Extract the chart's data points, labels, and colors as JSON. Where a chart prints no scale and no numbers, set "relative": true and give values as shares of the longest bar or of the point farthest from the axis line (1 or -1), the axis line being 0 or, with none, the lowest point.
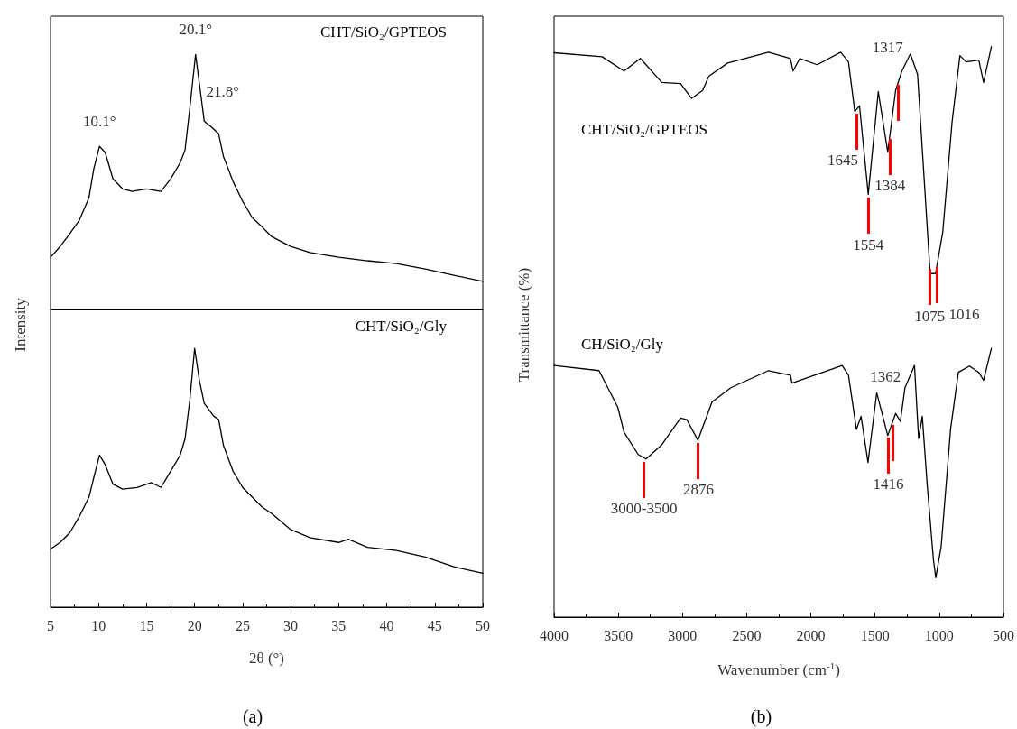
{
  "chart_data": [
    {
      "type": "line",
      "relative": true,
      "xlim": [
        5,
        50
      ],
      "tick_labels": false,
      "ylabel": "Intensity",
      "x": [
        5,
        6,
        7,
        8,
        9,
        9.5,
        10.1,
        10.7,
        11.5,
        12.5,
        13.5,
        15,
        16.5,
        17.5,
        18.5,
        19,
        19.5,
        20.1,
        20.6,
        21,
        21.8,
        22.5,
        23,
        24,
        25,
        26,
        27,
        28,
        30,
        32,
        35,
        38,
        41,
        44,
        47,
        50
      ],
      "series": [
        {
          "name": "CHT/SiO₂/GPTEOS",
          "color": "#000000",
          "values": [
            0.205,
            0.247,
            0.297,
            0.35,
            0.438,
            0.551,
            0.64,
            0.615,
            0.512,
            0.473,
            0.463,
            0.473,
            0.463,
            0.512,
            0.576,
            0.625,
            0.79,
            1,
            0.855,
            0.739,
            0.714,
            0.689,
            0.6,
            0.502,
            0.424,
            0.36,
            0.325,
            0.286,
            0.247,
            0.223,
            0.205,
            0.191,
            0.18,
            0.159,
            0.134,
            0.11
          ]
        }
      ],
      "annotations": [
        {
          "text": "10.1°",
          "x": 10.1,
          "y": 0.64
        },
        {
          "text": "20.1°",
          "x": 20.1,
          "y": 1
        },
        {
          "text": "21.8°",
          "x": 21.8,
          "y": 0.714
        }
      ]
    },
    {
      "type": "line",
      "relative": true,
      "xlim": [
        5,
        50
      ],
      "xticks": [
        5,
        10,
        15,
        20,
        25,
        30,
        35,
        40,
        45,
        50
      ],
      "tick_labels": "x",
      "xlabel": "2θ (°)",
      "x": [
        5,
        6,
        7,
        8,
        9,
        9.5,
        10.1,
        10.7,
        11.5,
        12.5,
        14,
        15.5,
        16.5,
        17.5,
        18.5,
        19,
        19.5,
        20,
        20.5,
        21,
        22,
        22.5,
        23,
        24,
        25,
        26,
        27,
        28,
        30,
        32,
        35,
        36,
        38,
        41,
        44,
        47,
        50
      ],
      "series": [
        {
          "name": "CHT/SiO₂/Gly",
          "color": "#000000",
          "values": [
            0.225,
            0.25,
            0.2875,
            0.35,
            0.425,
            0.5,
            0.5875,
            0.55,
            0.475,
            0.456,
            0.4625,
            0.481,
            0.4625,
            0.525,
            0.5875,
            0.65,
            0.8,
            1,
            0.875,
            0.7875,
            0.7375,
            0.725,
            0.625,
            0.525,
            0.4625,
            0.425,
            0.3875,
            0.3625,
            0.3,
            0.269,
            0.25,
            0.2625,
            0.231,
            0.219,
            0.194,
            0.156,
            0.131
          ]
        }
      ],
      "annotations": [
        "(a)"
      ]
    },
    {
      "type": "line",
      "relative": true,
      "xlim": [
        4000,
        500
      ],
      "xticks": [
        4000,
        3500,
        3000,
        2500,
        2000,
        1500,
        1000,
        500
      ],
      "xlabel": "Wavenumber (cm$^{-1}$)",
      "ylabel": "Transmittance (%)",
      "series": [
        {
          "name": "CHT/SiO₂/GPTEOS",
          "color": "#000000",
          "x": [
            4000,
            3626,
            3455,
            3328,
            3161,
            3015,
            2929,
            2843,
            2795,
            2648,
            2330,
            2159,
            2139,
            2086,
            1951,
            1768,
            1707,
            1658,
            1621,
            1553,
            1475,
            1401,
            1340,
            1291,
            1225,
            1169,
            1071,
            1029,
            973,
            900,
            839,
            790,
            692,
            655,
            594
          ],
          "values": [
            0.989,
            0.982,
            0.957,
            0.979,
            0.937,
            0.935,
            0.909,
            0.923,
            0.948,
            0.971,
            0.99,
            0.979,
            0.957,
            0.979,
            0.968,
            0.99,
            0.973,
            0.886,
            0.896,
            0.741,
            0.921,
            0.815,
            0.923,
            0.957,
            0.987,
            0.951,
            0.602,
            0.602,
            0.674,
            0.868,
            0.984,
            0.973,
            0.976,
            0.937,
            1
          ]
        },
        {
          "name": "CH/SiO₂/Gly",
          "color": "#000000",
          "x": [
            4000,
            3650,
            3504,
            3455,
            3345,
            3284,
            3161,
            3015,
            2966,
            2880,
            2770,
            2623,
            2330,
            2159,
            2147,
            1756,
            1707,
            1645,
            1609,
            1555,
            1487,
            1401,
            1340,
            1303,
            1267,
            1193,
            1161,
            1132,
            1095,
            1046,
            1027,
            985,
            912,
            851,
            765,
            692,
            655,
            594
          ],
          "values": [
            0.441,
            0.432,
            0.368,
            0.324,
            0.285,
            0.277,
            0.302,
            0.349,
            0.346,
            0.31,
            0.377,
            0.402,
            0.432,
            0.424,
            0.41,
            0.441,
            0.424,
            0.329,
            0.352,
            0.271,
            0.393,
            0.318,
            0.357,
            0.343,
            0.402,
            0.441,
            0.313,
            0.352,
            0.235,
            0.102,
            0.069,
            0.124,
            0.329,
            0.429,
            0.44,
            0.429,
            0.415,
            0.471
          ]
        }
      ],
      "annotations": [
        {
          "text": "1645",
          "x": 1645,
          "y": 0.889
        },
        {
          "text": "1554",
          "x": 1553,
          "y": 0.741
        },
        {
          "text": "1384",
          "x": 1384,
          "y": 0.845
        },
        {
          "text": "1317",
          "x": 1317,
          "y": 0.939
        },
        {
          "text": "1075",
          "x": 1075,
          "y": 0.616
        },
        {
          "text": "1016",
          "x": 1016,
          "y": 0.619
        },
        {
          "text": "3000-3500",
          "x": 3300,
          "y": 0.279
        },
        {
          "text": "2876",
          "x": 2876,
          "y": 0.312
        },
        {
          "text": "1416",
          "x": 1396,
          "y": 0.321
        },
        {
          "text": "1362",
          "x": 1362,
          "y": 0.343
        },
        "(b)"
      ]
    }
  ]
}
